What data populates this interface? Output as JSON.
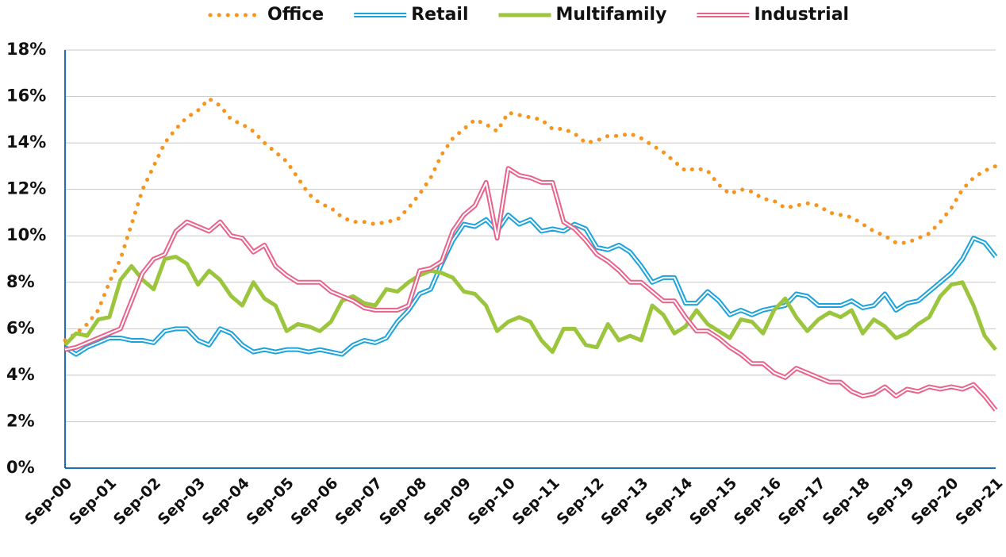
{
  "chart_data": {
    "type": "line",
    "categories": [
      "Sep-00",
      null,
      null,
      null,
      "Sep-01",
      null,
      null,
      null,
      "Sep-02",
      null,
      null,
      null,
      "Sep-03",
      null,
      null,
      null,
      "Sep-04",
      null,
      null,
      null,
      "Sep-05",
      null,
      null,
      null,
      "Sep-06",
      null,
      null,
      null,
      "Sep-07",
      null,
      null,
      null,
      "Sep-08",
      null,
      null,
      null,
      "Sep-09",
      null,
      null,
      null,
      "Sep-10",
      null,
      null,
      null,
      "Sep-11",
      null,
      null,
      null,
      "Sep-12",
      null,
      null,
      null,
      "Sep-13",
      null,
      null,
      null,
      "Sep-14",
      null,
      null,
      null,
      "Sep-15",
      null,
      null,
      null,
      "Sep-16",
      null,
      null,
      null,
      "Sep-17",
      null,
      null,
      null,
      "Sep-18",
      null,
      null,
      null,
      "Sep-19",
      null,
      null,
      null,
      "Sep-20",
      null,
      null,
      null,
      "Sep-21"
    ],
    "series": [
      {
        "name": "Office",
        "color": "#f7941d",
        "style": "dotted",
        "values": [
          5.5,
          5.8,
          6.2,
          6.8,
          8.0,
          9.0,
          10.5,
          12.0,
          13.0,
          14.0,
          14.6,
          15.1,
          15.4,
          15.9,
          15.6,
          15.0,
          14.8,
          14.5,
          14.0,
          13.6,
          13.2,
          12.5,
          11.8,
          11.4,
          11.2,
          10.8,
          10.6,
          10.6,
          10.5,
          10.6,
          10.7,
          11.2,
          11.8,
          12.5,
          13.5,
          14.2,
          14.6,
          15.0,
          14.8,
          14.5,
          15.3,
          15.2,
          15.1,
          15.0,
          14.6,
          14.6,
          14.4,
          14.0,
          14.1,
          14.3,
          14.3,
          14.4,
          14.2,
          13.9,
          13.6,
          13.2,
          12.8,
          12.9,
          12.8,
          12.2,
          11.8,
          12.0,
          11.9,
          11.6,
          11.5,
          11.2,
          11.3,
          11.4,
          11.3,
          11.0,
          10.9,
          10.8,
          10.5,
          10.2,
          10.0,
          9.7,
          9.7,
          9.9,
          10.1,
          10.6,
          11.2,
          12.0,
          12.5,
          12.8,
          13.0
        ]
      },
      {
        "name": "Retail",
        "color": "#1aa3dd",
        "style": "double",
        "values": [
          5.2,
          4.9,
          5.2,
          5.4,
          5.6,
          5.6,
          5.5,
          5.5,
          5.4,
          5.9,
          6.0,
          6.0,
          5.5,
          5.3,
          6.0,
          5.8,
          5.3,
          5.0,
          5.1,
          5.0,
          5.1,
          5.1,
          5.0,
          5.1,
          5.0,
          4.9,
          5.3,
          5.5,
          5.4,
          5.6,
          6.3,
          6.8,
          7.5,
          7.7,
          8.8,
          9.8,
          10.5,
          10.4,
          10.7,
          10.2,
          10.9,
          10.5,
          10.7,
          10.2,
          10.3,
          10.2,
          10.5,
          10.3,
          9.5,
          9.4,
          9.6,
          9.3,
          8.7,
          8.0,
          8.2,
          8.2,
          7.1,
          7.1,
          7.6,
          7.2,
          6.6,
          6.8,
          6.6,
          6.8,
          6.9,
          7.0,
          7.5,
          7.4,
          7.0,
          7.0,
          7.0,
          7.2,
          6.9,
          7.0,
          7.5,
          6.8,
          7.1,
          7.2,
          7.6,
          8.0,
          8.4,
          9.0,
          9.9,
          9.7,
          9.1
        ]
      },
      {
        "name": "Multifamily",
        "color": "#9bc53d",
        "style": "solid",
        "values": [
          5.3,
          5.8,
          5.7,
          6.4,
          6.5,
          8.1,
          8.7,
          8.1,
          7.7,
          9.0,
          9.1,
          8.8,
          7.9,
          8.5,
          8.1,
          7.4,
          7.0,
          8.0,
          7.3,
          7.0,
          5.9,
          6.2,
          6.1,
          5.9,
          6.3,
          7.2,
          7.4,
          7.1,
          7.0,
          7.7,
          7.6,
          8.0,
          8.3,
          8.5,
          8.4,
          8.2,
          7.6,
          7.5,
          7.0,
          5.9,
          6.3,
          6.5,
          6.3,
          5.5,
          5.0,
          6.0,
          6.0,
          5.3,
          5.2,
          6.2,
          5.5,
          5.7,
          5.5,
          7.0,
          6.6,
          5.8,
          6.1,
          6.8,
          6.2,
          5.9,
          5.6,
          6.4,
          6.3,
          5.8,
          6.8,
          7.3,
          6.5,
          5.9,
          6.4,
          6.7,
          6.5,
          6.8,
          5.8,
          6.4,
          6.1,
          5.6,
          5.8,
          6.2,
          6.5,
          7.4,
          7.9,
          8.0,
          7.0,
          5.7,
          5.1
        ]
      },
      {
        "name": "Industrial",
        "color": "#e8628a",
        "style": "double",
        "values": [
          5.1,
          5.2,
          5.4,
          5.6,
          5.8,
          6.0,
          7.2,
          8.4,
          9.0,
          9.2,
          10.2,
          10.6,
          10.4,
          10.2,
          10.6,
          10.0,
          9.9,
          9.3,
          9.6,
          8.7,
          8.3,
          8.0,
          8.0,
          8.0,
          7.6,
          7.4,
          7.2,
          6.9,
          6.8,
          6.8,
          6.8,
          7.0,
          8.5,
          8.6,
          8.9,
          10.2,
          10.9,
          11.3,
          12.3,
          9.9,
          12.9,
          12.6,
          12.5,
          12.3,
          12.3,
          10.6,
          10.3,
          9.8,
          9.2,
          8.9,
          8.5,
          8.0,
          8.0,
          7.6,
          7.2,
          7.2,
          6.5,
          5.9,
          5.9,
          5.6,
          5.2,
          4.9,
          4.5,
          4.5,
          4.1,
          3.9,
          4.3,
          4.1,
          3.9,
          3.7,
          3.7,
          3.3,
          3.1,
          3.2,
          3.5,
          3.1,
          3.4,
          3.3,
          3.5,
          3.4,
          3.5,
          3.4,
          3.6,
          3.1,
          2.5
        ]
      }
    ],
    "ylim": [
      0,
      18
    ],
    "yticks": [
      {
        "value": 0,
        "label": "0%"
      },
      {
        "value": 2,
        "label": "2%"
      },
      {
        "value": 4,
        "label": "4%"
      },
      {
        "value": 6,
        "label": "6%"
      },
      {
        "value": 8,
        "label": "8%"
      },
      {
        "value": 10,
        "label": "10%"
      },
      {
        "value": 12,
        "label": "12%"
      },
      {
        "value": 14,
        "label": "14%"
      },
      {
        "value": 16,
        "label": "16%"
      },
      {
        "value": 18,
        "label": "18%"
      }
    ],
    "grid": true,
    "legend": "top"
  }
}
